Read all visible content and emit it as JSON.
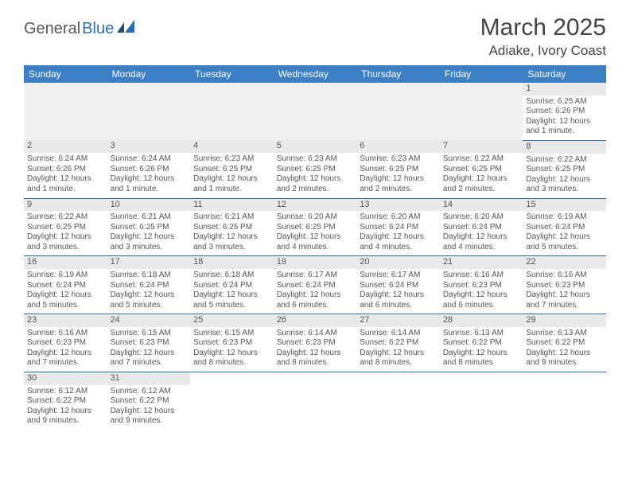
{
  "logo": {
    "part1": "General",
    "part2": "Blue"
  },
  "title": "March 2025",
  "location": "Adiake, Ivory Coast",
  "colors": {
    "header_bg": "#3b7fc4",
    "header_text": "#ffffff",
    "border": "#2a6db0",
    "daynum_bg": "#e9e9e9",
    "blank_bg": "#f0f0f0",
    "text": "#555555",
    "page_bg": "#ffffff"
  },
  "columns": [
    "Sunday",
    "Monday",
    "Tuesday",
    "Wednesday",
    "Thursday",
    "Friday",
    "Saturday"
  ],
  "weeks": [
    [
      null,
      null,
      null,
      null,
      null,
      null,
      {
        "d": "1",
        "sr": "Sunrise: 6:25 AM",
        "ss": "Sunset: 6:26 PM",
        "dl1": "Daylight: 12 hours",
        "dl2": "and 1 minute."
      }
    ],
    [
      {
        "d": "2",
        "sr": "Sunrise: 6:24 AM",
        "ss": "Sunset: 6:26 PM",
        "dl1": "Daylight: 12 hours",
        "dl2": "and 1 minute."
      },
      {
        "d": "3",
        "sr": "Sunrise: 6:24 AM",
        "ss": "Sunset: 6:26 PM",
        "dl1": "Daylight: 12 hours",
        "dl2": "and 1 minute."
      },
      {
        "d": "4",
        "sr": "Sunrise: 6:23 AM",
        "ss": "Sunset: 6:25 PM",
        "dl1": "Daylight: 12 hours",
        "dl2": "and 1 minute."
      },
      {
        "d": "5",
        "sr": "Sunrise: 6:23 AM",
        "ss": "Sunset: 6:25 PM",
        "dl1": "Daylight: 12 hours",
        "dl2": "and 2 minutes."
      },
      {
        "d": "6",
        "sr": "Sunrise: 6:23 AM",
        "ss": "Sunset: 6:25 PM",
        "dl1": "Daylight: 12 hours",
        "dl2": "and 2 minutes."
      },
      {
        "d": "7",
        "sr": "Sunrise: 6:22 AM",
        "ss": "Sunset: 6:25 PM",
        "dl1": "Daylight: 12 hours",
        "dl2": "and 2 minutes."
      },
      {
        "d": "8",
        "sr": "Sunrise: 6:22 AM",
        "ss": "Sunset: 6:25 PM",
        "dl1": "Daylight: 12 hours",
        "dl2": "and 3 minutes."
      }
    ],
    [
      {
        "d": "9",
        "sr": "Sunrise: 6:22 AM",
        "ss": "Sunset: 6:25 PM",
        "dl1": "Daylight: 12 hours",
        "dl2": "and 3 minutes."
      },
      {
        "d": "10",
        "sr": "Sunrise: 6:21 AM",
        "ss": "Sunset: 6:25 PM",
        "dl1": "Daylight: 12 hours",
        "dl2": "and 3 minutes."
      },
      {
        "d": "11",
        "sr": "Sunrise: 6:21 AM",
        "ss": "Sunset: 6:25 PM",
        "dl1": "Daylight: 12 hours",
        "dl2": "and 3 minutes."
      },
      {
        "d": "12",
        "sr": "Sunrise: 6:20 AM",
        "ss": "Sunset: 6:25 PM",
        "dl1": "Daylight: 12 hours",
        "dl2": "and 4 minutes."
      },
      {
        "d": "13",
        "sr": "Sunrise: 6:20 AM",
        "ss": "Sunset: 6:24 PM",
        "dl1": "Daylight: 12 hours",
        "dl2": "and 4 minutes."
      },
      {
        "d": "14",
        "sr": "Sunrise: 6:20 AM",
        "ss": "Sunset: 6:24 PM",
        "dl1": "Daylight: 12 hours",
        "dl2": "and 4 minutes."
      },
      {
        "d": "15",
        "sr": "Sunrise: 6:19 AM",
        "ss": "Sunset: 6:24 PM",
        "dl1": "Daylight: 12 hours",
        "dl2": "and 5 minutes."
      }
    ],
    [
      {
        "d": "16",
        "sr": "Sunrise: 6:19 AM",
        "ss": "Sunset: 6:24 PM",
        "dl1": "Daylight: 12 hours",
        "dl2": "and 5 minutes."
      },
      {
        "d": "17",
        "sr": "Sunrise: 6:18 AM",
        "ss": "Sunset: 6:24 PM",
        "dl1": "Daylight: 12 hours",
        "dl2": "and 5 minutes."
      },
      {
        "d": "18",
        "sr": "Sunrise: 6:18 AM",
        "ss": "Sunset: 6:24 PM",
        "dl1": "Daylight: 12 hours",
        "dl2": "and 5 minutes."
      },
      {
        "d": "19",
        "sr": "Sunrise: 6:17 AM",
        "ss": "Sunset: 6:24 PM",
        "dl1": "Daylight: 12 hours",
        "dl2": "and 6 minutes."
      },
      {
        "d": "20",
        "sr": "Sunrise: 6:17 AM",
        "ss": "Sunset: 6:24 PM",
        "dl1": "Daylight: 12 hours",
        "dl2": "and 6 minutes."
      },
      {
        "d": "21",
        "sr": "Sunrise: 6:16 AM",
        "ss": "Sunset: 6:23 PM",
        "dl1": "Daylight: 12 hours",
        "dl2": "and 6 minutes."
      },
      {
        "d": "22",
        "sr": "Sunrise: 6:16 AM",
        "ss": "Sunset: 6:23 PM",
        "dl1": "Daylight: 12 hours",
        "dl2": "and 7 minutes."
      }
    ],
    [
      {
        "d": "23",
        "sr": "Sunrise: 6:16 AM",
        "ss": "Sunset: 6:23 PM",
        "dl1": "Daylight: 12 hours",
        "dl2": "and 7 minutes."
      },
      {
        "d": "24",
        "sr": "Sunrise: 6:15 AM",
        "ss": "Sunset: 6:23 PM",
        "dl1": "Daylight: 12 hours",
        "dl2": "and 7 minutes."
      },
      {
        "d": "25",
        "sr": "Sunrise: 6:15 AM",
        "ss": "Sunset: 6:23 PM",
        "dl1": "Daylight: 12 hours",
        "dl2": "and 8 minutes."
      },
      {
        "d": "26",
        "sr": "Sunrise: 6:14 AM",
        "ss": "Sunset: 6:23 PM",
        "dl1": "Daylight: 12 hours",
        "dl2": "and 8 minutes."
      },
      {
        "d": "27",
        "sr": "Sunrise: 6:14 AM",
        "ss": "Sunset: 6:22 PM",
        "dl1": "Daylight: 12 hours",
        "dl2": "and 8 minutes."
      },
      {
        "d": "28",
        "sr": "Sunrise: 6:13 AM",
        "ss": "Sunset: 6:22 PM",
        "dl1": "Daylight: 12 hours",
        "dl2": "and 8 minutes."
      },
      {
        "d": "29",
        "sr": "Sunrise: 6:13 AM",
        "ss": "Sunset: 6:22 PM",
        "dl1": "Daylight: 12 hours",
        "dl2": "and 9 minutes."
      }
    ],
    [
      {
        "d": "30",
        "sr": "Sunrise: 6:12 AM",
        "ss": "Sunset: 6:22 PM",
        "dl1": "Daylight: 12 hours",
        "dl2": "and 9 minutes."
      },
      {
        "d": "31",
        "sr": "Sunrise: 6:12 AM",
        "ss": "Sunset: 6:22 PM",
        "dl1": "Daylight: 12 hours",
        "dl2": "and 9 minutes."
      },
      null,
      null,
      null,
      null,
      null
    ]
  ]
}
